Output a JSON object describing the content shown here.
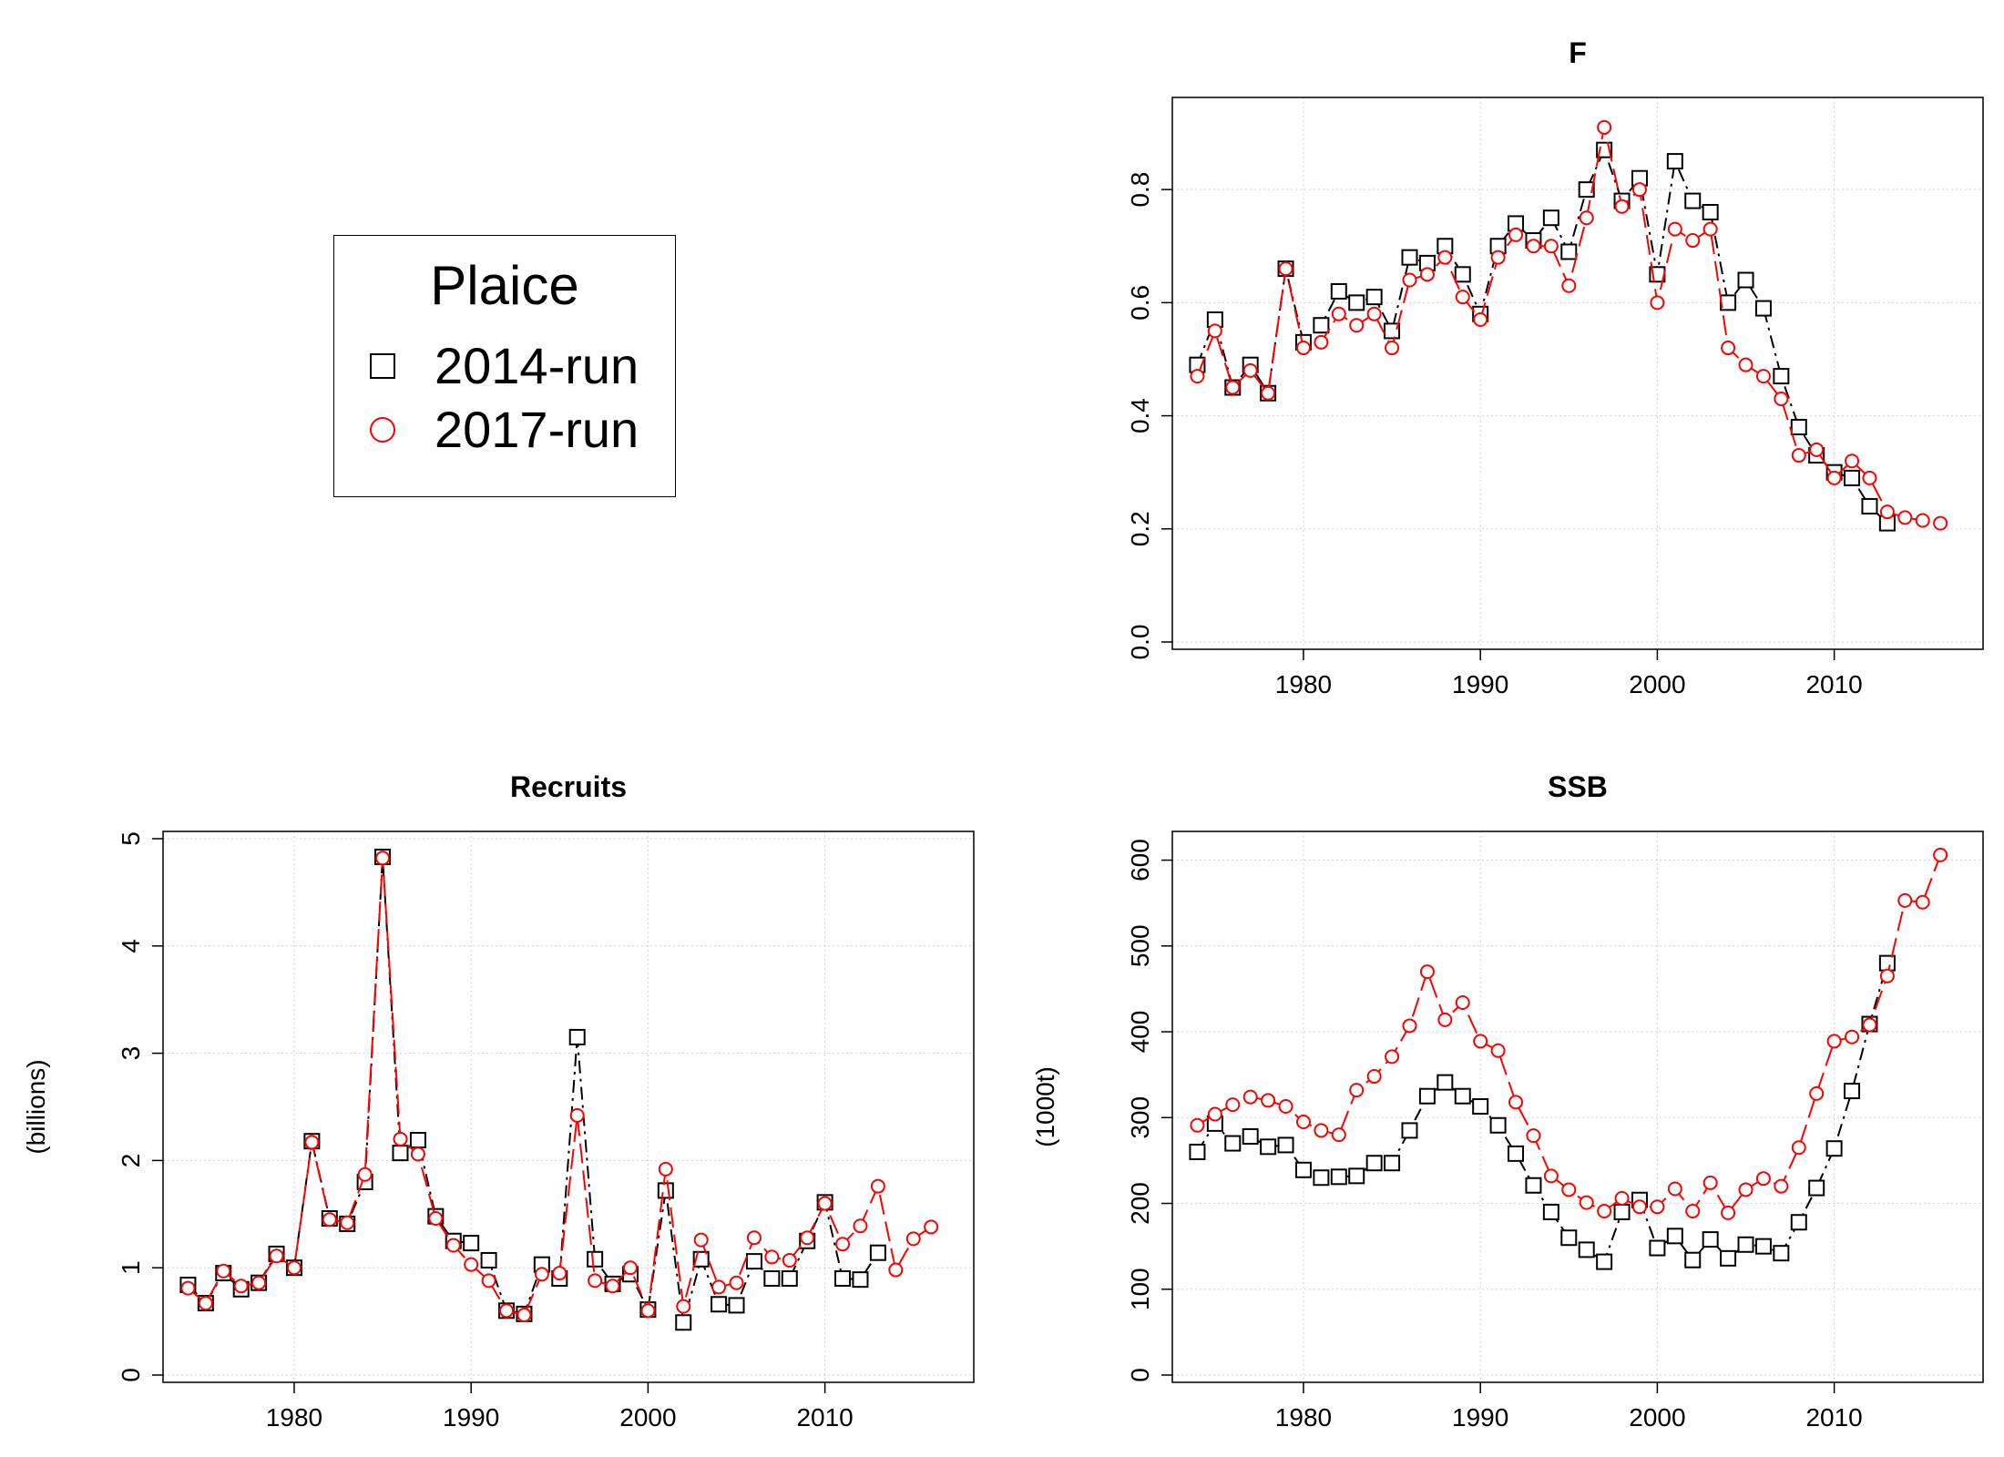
{
  "legend": {
    "title": "Plaice",
    "series": [
      {
        "label": "2014-run",
        "color": "#000000",
        "symbol": "square"
      },
      {
        "label": "2017-run",
        "color": "#ff0000",
        "symbol": "circle"
      }
    ]
  },
  "chart_data": [
    {
      "id": "F",
      "type": "line",
      "title": "F",
      "xlabel": "",
      "ylabel": "",
      "xlim": [
        1973,
        2018
      ],
      "ylim": [
        0.0,
        0.95
      ],
      "xticks": [
        1980,
        1990,
        2000,
        2010
      ],
      "yticks": [
        0.0,
        0.2,
        0.4,
        0.6,
        0.8
      ],
      "grid": true,
      "series": [
        {
          "name": "2014-run",
          "color": "#000000",
          "marker": "square",
          "x": [
            1974,
            1975,
            1976,
            1977,
            1978,
            1979,
            1980,
            1981,
            1982,
            1983,
            1984,
            1985,
            1986,
            1987,
            1988,
            1989,
            1990,
            1991,
            1992,
            1993,
            1994,
            1995,
            1996,
            1997,
            1998,
            1999,
            2000,
            2001,
            2002,
            2003,
            2004,
            2005,
            2006,
            2007,
            2008,
            2009,
            2010,
            2011,
            2012,
            2013
          ],
          "y": [
            0.49,
            0.57,
            0.45,
            0.49,
            0.44,
            0.66,
            0.53,
            0.56,
            0.62,
            0.6,
            0.61,
            0.55,
            0.68,
            0.67,
            0.7,
            0.65,
            0.58,
            0.7,
            0.74,
            0.71,
            0.75,
            0.69,
            0.8,
            0.87,
            0.78,
            0.82,
            0.65,
            0.85,
            0.78,
            0.76,
            0.6,
            0.64,
            0.59,
            0.47,
            0.38,
            0.33,
            0.3,
            0.29,
            0.24,
            0.21
          ]
        },
        {
          "name": "2017-run",
          "color": "#ff0000",
          "marker": "circle",
          "x": [
            1974,
            1975,
            1976,
            1977,
            1978,
            1979,
            1980,
            1981,
            1982,
            1983,
            1984,
            1985,
            1986,
            1987,
            1988,
            1989,
            1990,
            1991,
            1992,
            1993,
            1994,
            1995,
            1996,
            1997,
            1998,
            1999,
            2000,
            2001,
            2002,
            2003,
            2004,
            2005,
            2006,
            2007,
            2008,
            2009,
            2010,
            2011,
            2012,
            2013,
            2014,
            2015,
            2016
          ],
          "y": [
            0.47,
            0.55,
            0.45,
            0.48,
            0.44,
            0.66,
            0.52,
            0.53,
            0.58,
            0.56,
            0.58,
            0.52,
            0.64,
            0.65,
            0.68,
            0.61,
            0.57,
            0.68,
            0.72,
            0.7,
            0.7,
            0.63,
            0.75,
            0.91,
            0.77,
            0.8,
            0.6,
            0.73,
            0.71,
            0.73,
            0.52,
            0.49,
            0.47,
            0.43,
            0.33,
            0.34,
            0.29,
            0.32,
            0.29,
            0.23,
            0.22,
            0.215,
            0.21
          ]
        }
      ]
    },
    {
      "id": "Recruits",
      "type": "line",
      "title": "Recruits",
      "xlabel": "",
      "ylabel": "(billions)",
      "xlim": [
        1973,
        2018
      ],
      "ylim": [
        0,
        5
      ],
      "xticks": [
        1980,
        1990,
        2000,
        2010
      ],
      "yticks": [
        0,
        1,
        2,
        3,
        4,
        5
      ],
      "grid": true,
      "series": [
        {
          "name": "2014-run",
          "color": "#000000",
          "marker": "square",
          "x": [
            1974,
            1975,
            1976,
            1977,
            1978,
            1979,
            1980,
            1981,
            1982,
            1983,
            1984,
            1985,
            1986,
            1987,
            1988,
            1989,
            1990,
            1991,
            1992,
            1993,
            1994,
            1995,
            1996,
            1997,
            1998,
            1999,
            2000,
            2001,
            2002,
            2003,
            2004,
            2005,
            2006,
            2007,
            2008,
            2009,
            2010,
            2011,
            2012,
            2013
          ],
          "y": [
            0.84,
            0.67,
            0.95,
            0.8,
            0.86,
            1.13,
            1.0,
            2.18,
            1.46,
            1.41,
            1.8,
            4.83,
            2.07,
            2.19,
            1.48,
            1.25,
            1.23,
            1.07,
            0.6,
            0.57,
            1.03,
            0.9,
            3.15,
            1.08,
            0.85,
            0.94,
            0.61,
            1.72,
            0.49,
            1.08,
            0.66,
            0.65,
            1.06,
            0.9,
            0.9,
            1.25,
            1.61,
            0.9,
            0.89,
            1.14
          ]
        },
        {
          "name": "2017-run",
          "color": "#ff0000",
          "marker": "circle",
          "x": [
            1974,
            1975,
            1976,
            1977,
            1978,
            1979,
            1980,
            1981,
            1982,
            1983,
            1984,
            1985,
            1986,
            1987,
            1988,
            1989,
            1990,
            1991,
            1992,
            1993,
            1994,
            1995,
            1996,
            1997,
            1998,
            1999,
            2000,
            2001,
            2002,
            2003,
            2004,
            2005,
            2006,
            2007,
            2008,
            2009,
            2010,
            2011,
            2012,
            2013,
            2014,
            2015,
            2016
          ],
          "y": [
            0.81,
            0.67,
            0.97,
            0.83,
            0.86,
            1.11,
            1.0,
            2.17,
            1.45,
            1.42,
            1.87,
            4.82,
            2.2,
            2.06,
            1.46,
            1.21,
            1.03,
            0.88,
            0.6,
            0.56,
            0.94,
            0.95,
            2.42,
            0.88,
            0.83,
            1.0,
            0.6,
            1.92,
            0.64,
            1.26,
            0.82,
            0.86,
            1.28,
            1.1,
            1.07,
            1.28,
            1.6,
            1.22,
            1.39,
            1.76,
            0.98,
            1.27,
            1.38
          ]
        }
      ]
    },
    {
      "id": "SSB",
      "type": "line",
      "title": "SSB",
      "xlabel": "",
      "ylabel": "(1000t)",
      "xlim": [
        1973,
        2018
      ],
      "ylim": [
        0,
        625
      ],
      "xticks": [
        1980,
        1990,
        2000,
        2010
      ],
      "yticks": [
        0,
        100,
        200,
        300,
        400,
        500,
        600
      ],
      "grid": true,
      "series": [
        {
          "name": "2014-run",
          "color": "#000000",
          "marker": "square",
          "x": [
            1974,
            1975,
            1976,
            1977,
            1978,
            1979,
            1980,
            1981,
            1982,
            1983,
            1984,
            1985,
            1986,
            1987,
            1988,
            1989,
            1990,
            1991,
            1992,
            1993,
            1994,
            1995,
            1996,
            1997,
            1998,
            1999,
            2000,
            2001,
            2002,
            2003,
            2004,
            2005,
            2006,
            2007,
            2008,
            2009,
            2010,
            2011,
            2012,
            2013
          ],
          "y": [
            260,
            293,
            270,
            278,
            266,
            268,
            239,
            230,
            231,
            232,
            247,
            247,
            285,
            325,
            341,
            325,
            313,
            291,
            258,
            221,
            190,
            160,
            146,
            132,
            190,
            204,
            148,
            162,
            134,
            158,
            136,
            152,
            150,
            142,
            178,
            218,
            264,
            331,
            409,
            480
          ]
        },
        {
          "name": "2017-run",
          "color": "#ff0000",
          "marker": "circle",
          "x": [
            1974,
            1975,
            1976,
            1977,
            1978,
            1979,
            1980,
            1981,
            1982,
            1983,
            1984,
            1985,
            1986,
            1987,
            1988,
            1989,
            1990,
            1991,
            1992,
            1993,
            1994,
            1995,
            1996,
            1997,
            1998,
            1999,
            2000,
            2001,
            2002,
            2003,
            2004,
            2005,
            2006,
            2007,
            2008,
            2009,
            2010,
            2011,
            2012,
            2013,
            2014,
            2015,
            2016
          ],
          "y": [
            291,
            304,
            315,
            324,
            320,
            313,
            295,
            285,
            280,
            332,
            348,
            371,
            407,
            470,
            414,
            434,
            389,
            378,
            318,
            279,
            232,
            216,
            201,
            191,
            206,
            196,
            196,
            217,
            191,
            224,
            189,
            216,
            229,
            220,
            265,
            328,
            389,
            394,
            408,
            465,
            553,
            551,
            606
          ]
        }
      ]
    }
  ]
}
